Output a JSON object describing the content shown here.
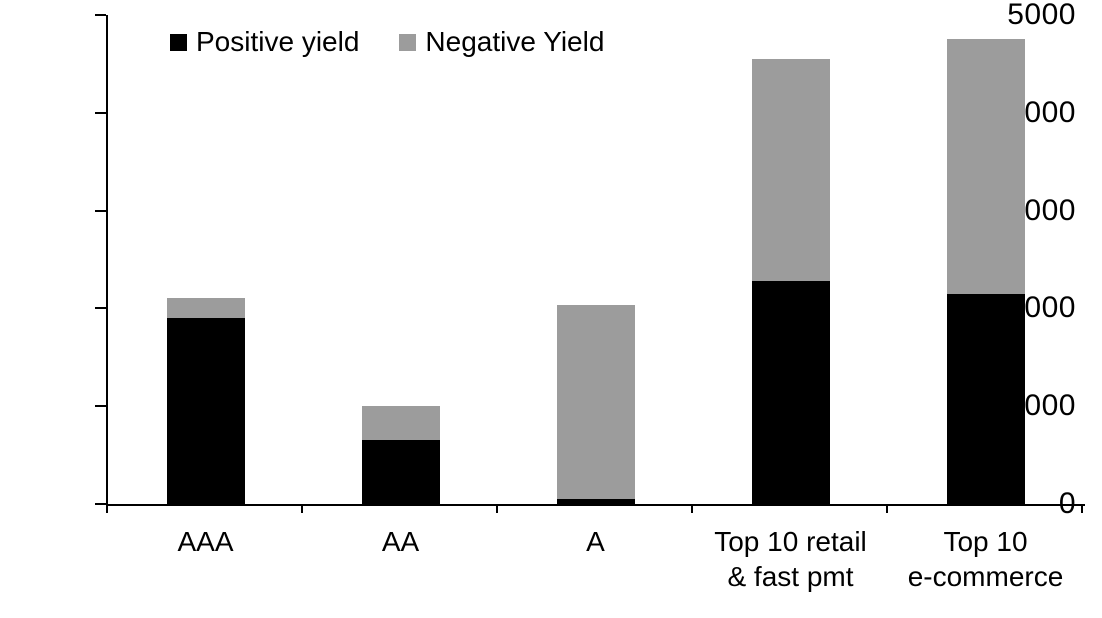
{
  "chart_data": {
    "type": "bar",
    "stacked": true,
    "title": "",
    "xlabel": "",
    "ylabel": "",
    "grid": false,
    "legend_position": "top-left-inside",
    "categories": [
      "AAA",
      "AA",
      "A",
      "Top 10 retail\n& fast pmt",
      "Top 10\ne-commerce"
    ],
    "series": [
      {
        "name": "Positive yield",
        "color": "#000000",
        "values": [
          1900,
          650,
          50,
          2280,
          2150
        ]
      },
      {
        "name": "Negative Yield",
        "color": "#9c9c9c",
        "values": [
          210,
          350,
          1980,
          2270,
          2600
        ]
      }
    ],
    "totals": [
      2110,
      1000,
      2030,
      4550,
      4750
    ],
    "ylim": [
      0,
      5000
    ],
    "yticks": [
      "0",
      "1000",
      "2000",
      "3000",
      "4000",
      "5000"
    ]
  },
  "colors": {
    "axis": "#000000",
    "background": "#ffffff"
  }
}
